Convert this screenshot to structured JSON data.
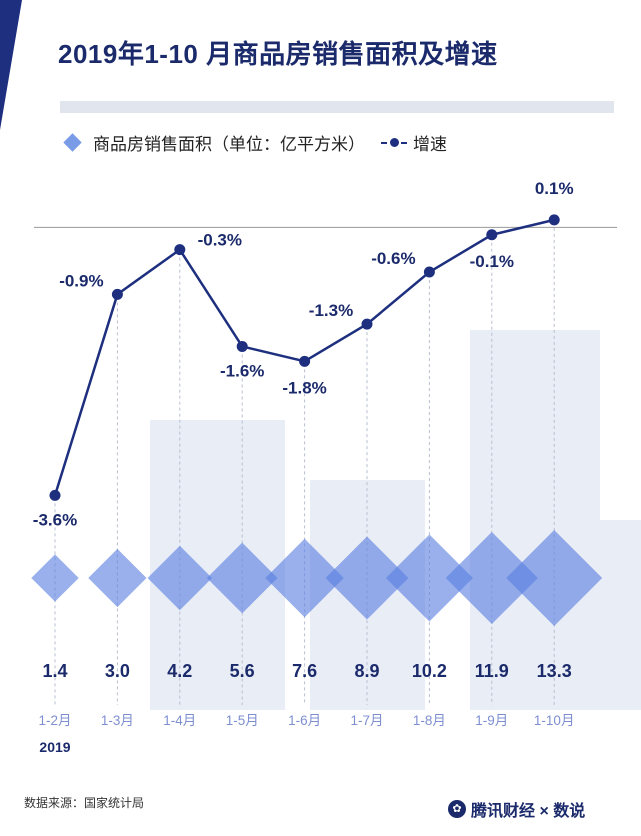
{
  "header": {
    "title": "2019年1-10 月商品房销售面积及增速"
  },
  "legend": {
    "area_label": "商品房销售面积（单位：亿平方米）",
    "growth_label": "增速"
  },
  "chart_data": {
    "type": "bar",
    "title": "2019年1-10 月商品房销售面积及增速",
    "categories": [
      "1-2月",
      "1-3月",
      "1-4月",
      "1-5月",
      "1-6月",
      "1-7月",
      "1-8月",
      "1-9月",
      "1-10月"
    ],
    "year_label": "2019",
    "series": [
      {
        "name": "商品房销售面积（单位：亿平方米）",
        "marker": "diamond",
        "values": [
          1.4,
          3.0,
          4.2,
          5.6,
          7.6,
          8.9,
          10.2,
          11.9,
          13.3
        ],
        "labels": [
          "1.4",
          "3.0",
          "4.2",
          "5.6",
          "7.6",
          "8.9",
          "10.2",
          "11.9",
          "13.3"
        ]
      },
      {
        "name": "增速",
        "marker": "line",
        "unit": "%",
        "values": [
          -3.6,
          -0.9,
          -0.3,
          -1.6,
          -1.8,
          -1.3,
          -0.6,
          -0.1,
          0.1
        ],
        "labels": [
          "-3.6%",
          "-0.9%",
          "-0.3%",
          "-1.6%",
          "-1.8%",
          "-1.3%",
          "-0.6%",
          "-0.1%",
          "0.1%"
        ]
      }
    ],
    "ylim_growth": [
      -4.2,
      0.3
    ],
    "reference_line": 0,
    "colors": {
      "line": "#1d2f7e",
      "diamond": "#5b7fe0",
      "label": "#1b2a6b",
      "category": "#7e8fd0"
    }
  },
  "footer": {
    "source": "数据来源：国家统计局",
    "brand": "腾讯财经 × 数说"
  }
}
